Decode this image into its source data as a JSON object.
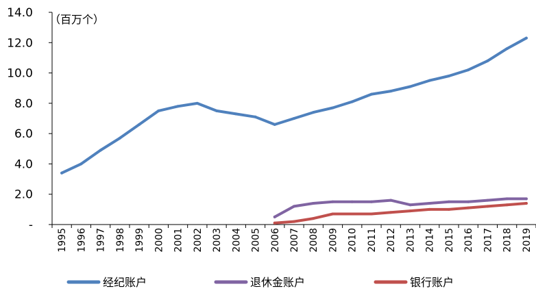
{
  "chart_data": {
    "type": "line",
    "title": "",
    "unit_label": "（百万个）",
    "xlabel": "",
    "ylabel": "",
    "ylim": [
      0,
      14
    ],
    "y_ticks": [
      {
        "value": 0,
        "label": "-"
      },
      {
        "value": 2,
        "label": "2.0"
      },
      {
        "value": 4,
        "label": "4.0"
      },
      {
        "value": 6,
        "label": "6.0"
      },
      {
        "value": 8,
        "label": "8.0"
      },
      {
        "value": 10,
        "label": "10.0"
      },
      {
        "value": 12,
        "label": "12.0"
      },
      {
        "value": 14,
        "label": "14.0"
      }
    ],
    "categories": [
      "1995",
      "1996",
      "1997",
      "1998",
      "1999",
      "2000",
      "2001",
      "2002",
      "2003",
      "2004",
      "2005",
      "2006",
      "2007",
      "2008",
      "2009",
      "2010",
      "2011",
      "2012",
      "2013",
      "2014",
      "2015",
      "2016",
      "2017",
      "2018",
      "2019"
    ],
    "grid": false,
    "legend_position": "bottom",
    "series": [
      {
        "name": "经纪账户",
        "color": "#4f81bd",
        "values": [
          3.4,
          4.0,
          4.9,
          5.7,
          6.6,
          7.5,
          7.8,
          8.0,
          7.5,
          7.3,
          7.1,
          6.6,
          7.0,
          7.4,
          7.7,
          8.1,
          8.6,
          8.8,
          9.1,
          9.5,
          9.8,
          10.2,
          10.8,
          11.6,
          12.3
        ]
      },
      {
        "name": "退休金账户",
        "color": "#8064a2",
        "values": [
          null,
          null,
          null,
          null,
          null,
          null,
          null,
          null,
          null,
          null,
          null,
          0.5,
          1.2,
          1.4,
          1.5,
          1.5,
          1.5,
          1.6,
          1.3,
          1.4,
          1.5,
          1.5,
          1.6,
          1.7,
          1.7
        ]
      },
      {
        "name": "银行账户",
        "color": "#c0504d",
        "values": [
          null,
          null,
          null,
          null,
          null,
          null,
          null,
          null,
          null,
          null,
          null,
          0.1,
          0.2,
          0.4,
          0.7,
          0.7,
          0.7,
          0.8,
          0.9,
          1.0,
          1.0,
          1.1,
          1.2,
          1.3,
          1.4
        ]
      }
    ]
  }
}
